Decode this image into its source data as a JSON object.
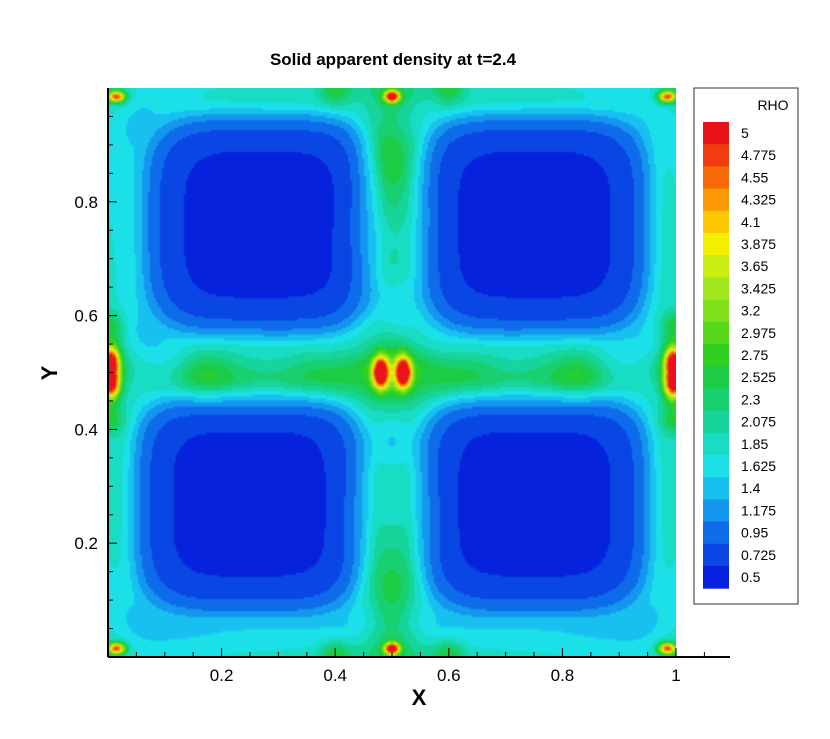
{
  "chart_data": {
    "type": "heatmap",
    "title": "Solid apparent density at t=2.4",
    "xlabel": "X",
    "ylabel": "Y",
    "xlim": [
      0,
      1.1
    ],
    "ylim": [
      0,
      1
    ],
    "x_ticks": [
      0.2,
      0.4,
      0.6,
      0.8,
      1
    ],
    "x_tick_labels": [
      "0.2",
      "0.4",
      "0.6",
      "0.8",
      "1"
    ],
    "y_ticks": [
      0.2,
      0.4,
      0.6,
      0.8
    ],
    "y_tick_labels": [
      "0.2",
      "0.4",
      "0.6",
      "0.8"
    ],
    "legend": {
      "title": "RHO",
      "placement": "right",
      "levels": [
        "5",
        "4.775",
        "4.55",
        "4.325",
        "4.1",
        "3.875",
        "3.65",
        "3.425",
        "3.2",
        "2.975",
        "2.75",
        "2.525",
        "2.3",
        "2.075",
        "1.85",
        "1.625",
        "1.4",
        "1.175",
        "0.95",
        "0.725",
        "0.5"
      ],
      "colors": [
        "#e8141a",
        "#f03c10",
        "#f76a08",
        "#fb9a05",
        "#fdc802",
        "#f2f000",
        "#c8ee12",
        "#a2e61e",
        "#80e01c",
        "#58d81a",
        "#30d020",
        "#1ccc44",
        "#18d070",
        "#16d49a",
        "#18dcc4",
        "#1ce0e8",
        "#18c0f0",
        "#1496ee",
        "#0e6cea",
        "#0a46e4",
        "#0622dc"
      ]
    },
    "colorbar_range": [
      0.5,
      5
    ],
    "field": {
      "domain_x": [
        0,
        1
      ],
      "domain_y": [
        0,
        1
      ],
      "dense_regions": [
        {
          "x": 0.27,
          "y": 0.76
        },
        {
          "x": 0.75,
          "y": 0.76
        },
        {
          "x": 0.25,
          "y": 0.27
        },
        {
          "x": 0.75,
          "y": 0.27
        }
      ],
      "peaks": [
        {
          "x": 0.48,
          "y": 0.5,
          "value": 5.0
        },
        {
          "x": 0.52,
          "y": 0.5,
          "value": 5.0
        },
        {
          "x": 0.5,
          "y": 0.985,
          "value": 4.9
        },
        {
          "x": 0.5,
          "y": 0.015,
          "value": 4.9
        },
        {
          "x": 0.015,
          "y": 0.985,
          "value": 4.2
        },
        {
          "x": 0.985,
          "y": 0.985,
          "value": 4.2
        },
        {
          "x": 0.015,
          "y": 0.015,
          "value": 4.2
        },
        {
          "x": 0.985,
          "y": 0.015,
          "value": 4.2
        },
        {
          "x": 0.005,
          "y": 0.52,
          "value": 4.5
        },
        {
          "x": 0.005,
          "y": 0.48,
          "value": 4.5
        },
        {
          "x": 0.995,
          "y": 0.52,
          "value": 4.5
        },
        {
          "x": 0.995,
          "y": 0.48,
          "value": 4.5
        }
      ]
    }
  }
}
